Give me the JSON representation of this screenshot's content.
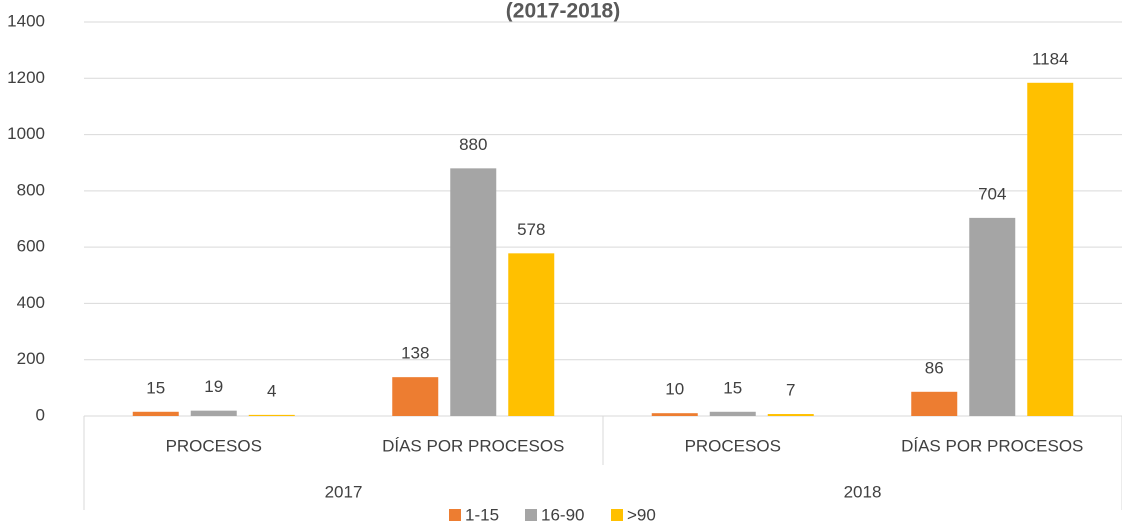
{
  "chart_data": {
    "type": "bar",
    "title": "(2017-2018)",
    "categories": [
      "PROCESOS",
      "DÍAS POR PROCESOS",
      "PROCESOS",
      "DÍAS POR PROCESOS"
    ],
    "group_labels": [
      "2017",
      "2018"
    ],
    "series": [
      {
        "name": "1-15",
        "color": "#ed7d31",
        "values": [
          15,
          138,
          10,
          86
        ]
      },
      {
        "name": "16-90",
        "color": "#a5a5a5",
        "values": [
          19,
          880,
          15,
          704
        ]
      },
      {
        "name": ">90",
        "color": "#ffc000",
        "values": [
          4,
          578,
          7,
          1184
        ]
      }
    ],
    "ylim": [
      0,
      1400
    ],
    "yticks": [
      0,
      200,
      400,
      600,
      800,
      1000,
      1200,
      1400
    ],
    "grid": true,
    "legend": "bottom"
  }
}
